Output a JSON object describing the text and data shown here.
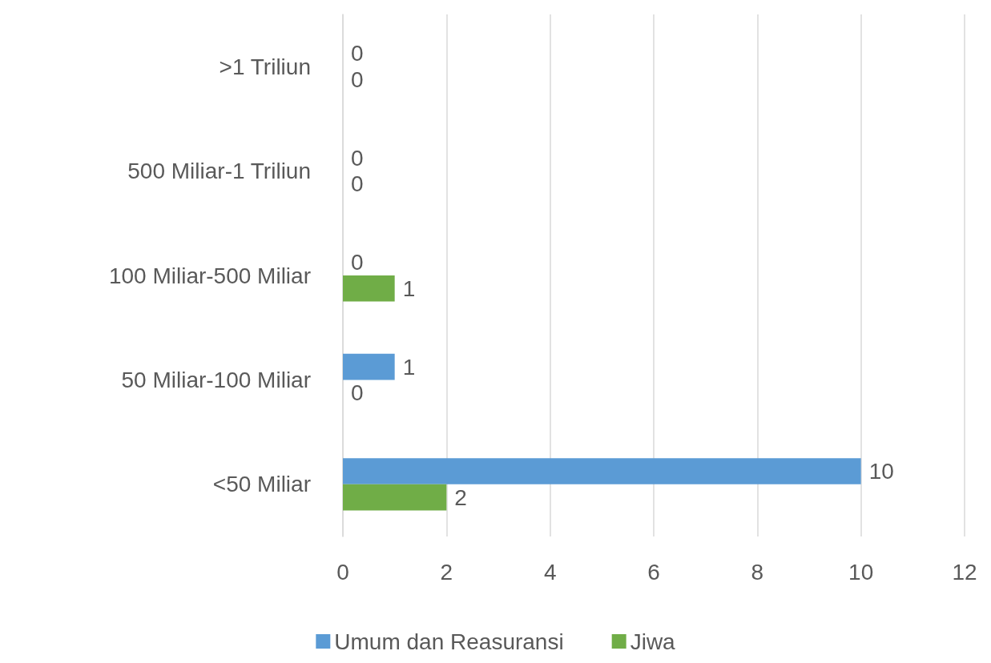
{
  "chart_data": {
    "type": "bar",
    "orientation": "horizontal",
    "categories": [
      ">1 Triliun",
      "500 Miliar-1 Triliun",
      "100 Miliar-500 Miliar",
      "50 Miliar-100 Miliar",
      "<50 Miliar"
    ],
    "series": [
      {
        "name": "Umum dan Reasuransi",
        "color": "#5b9bd5",
        "values": [
          0,
          0,
          0,
          1,
          10
        ]
      },
      {
        "name": "Jiwa",
        "color": "#70ad47",
        "values": [
          0,
          0,
          1,
          0,
          2
        ]
      }
    ],
    "xlim": [
      0,
      12
    ],
    "xticks": [
      0,
      2,
      4,
      6,
      8,
      10,
      12
    ],
    "grid": "x",
    "legend": "bottom",
    "data_labels": true
  }
}
